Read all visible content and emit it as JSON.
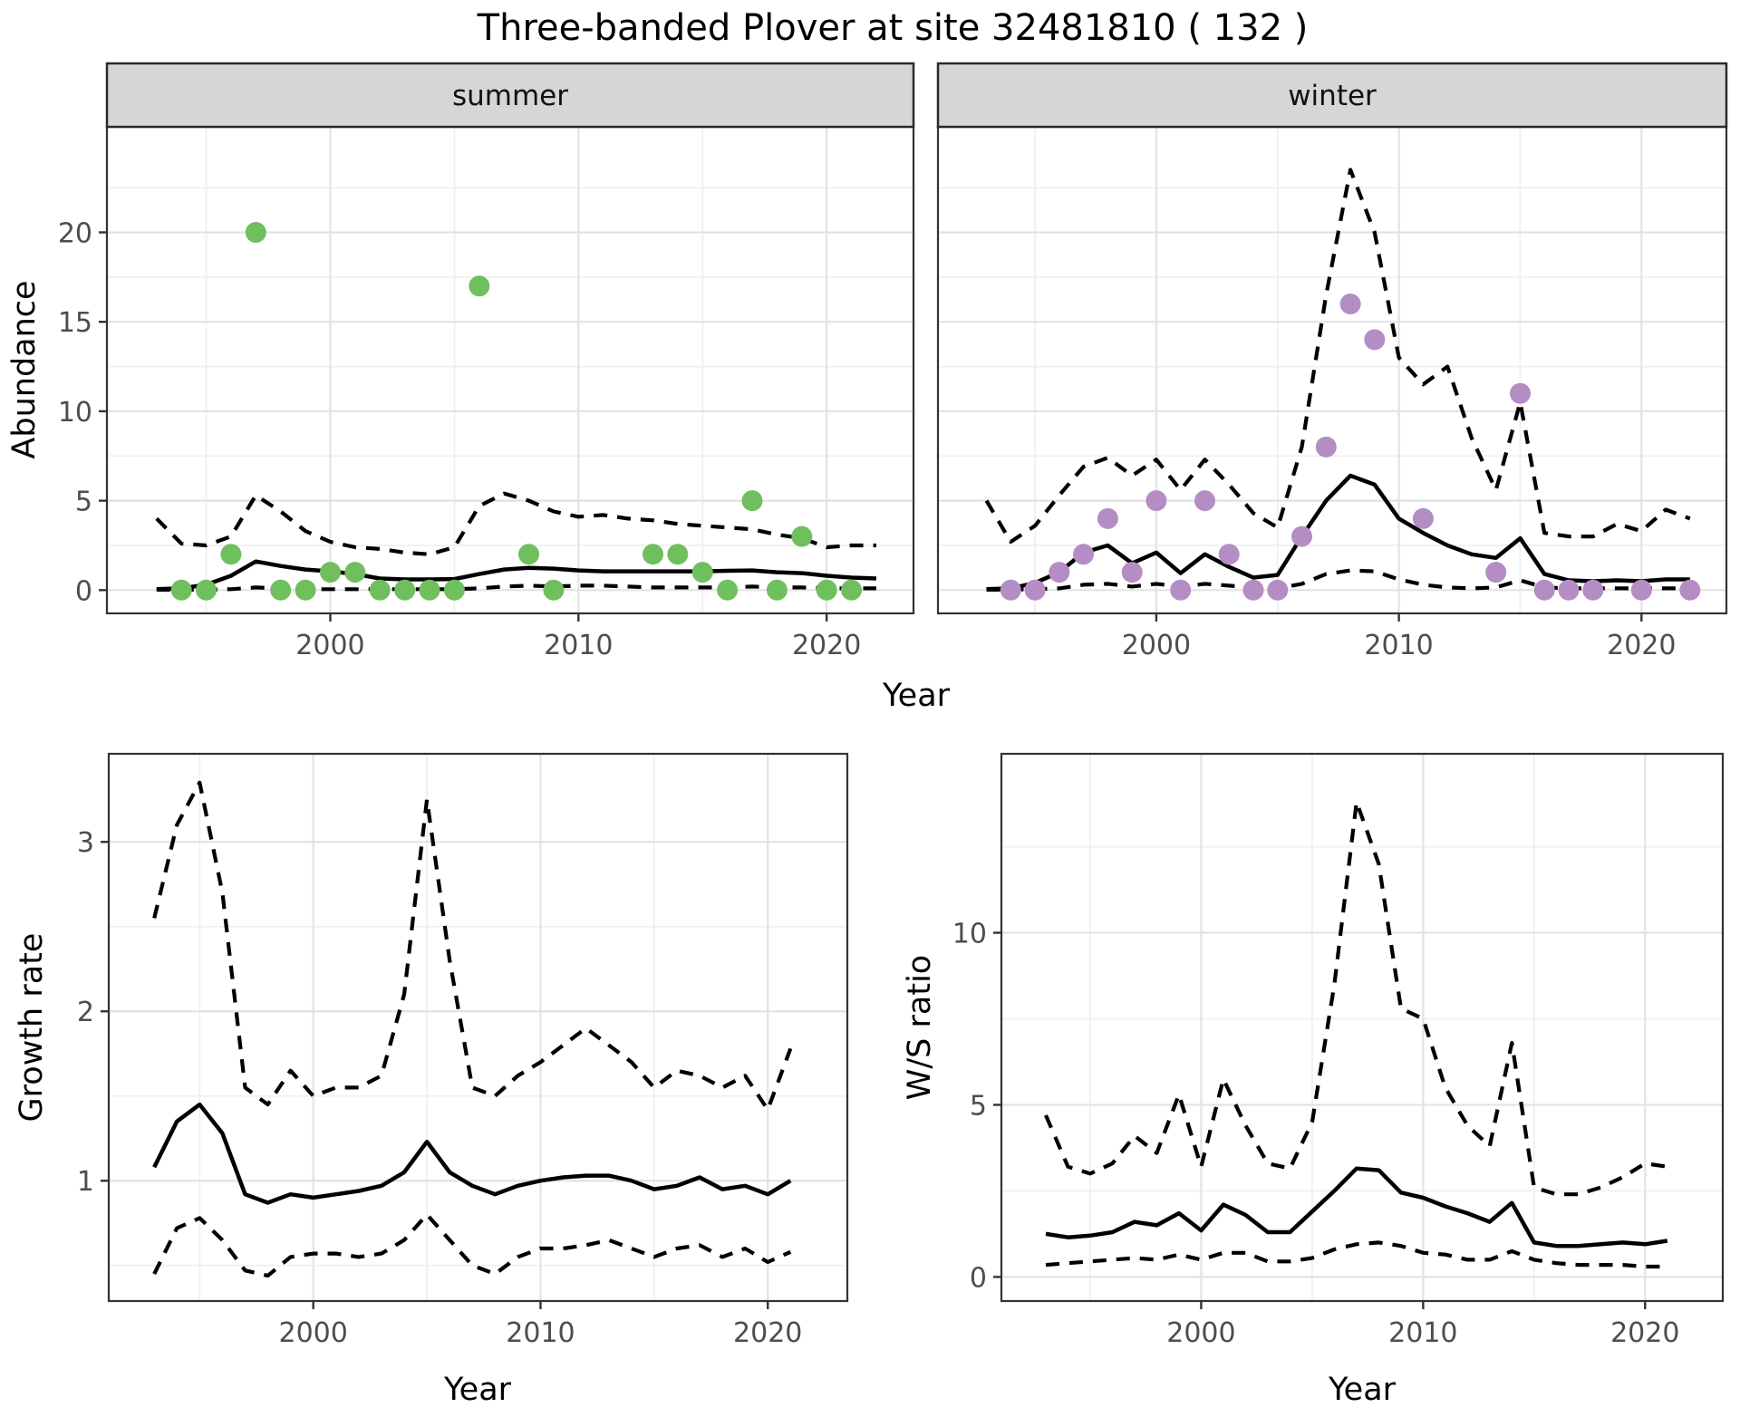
{
  "title": "Three-banded Plover at site 32481810 ( 132 )",
  "axes": {
    "abundance_label": "Abundance",
    "year_label_top": "Year"
  },
  "colors": {
    "summer_point": "#6fbf5e",
    "winter_point": "#b38dc4",
    "line": "#000000",
    "grid_major": "#e3e3e3",
    "grid_minor": "#f0f0f0",
    "panel_border": "#333333",
    "strip_background": "#d6d6d6",
    "tick_label": "#4d4d4d"
  },
  "chart_data": [
    {
      "id": "abundance-summer",
      "type": "line",
      "facet_label": "summer",
      "xlabel": "Year",
      "ylabel": "Abundance",
      "xlim": [
        1991,
        2023.5
      ],
      "ylim": [
        -1.3,
        25.9
      ],
      "xticks": [
        2000,
        2010,
        2020
      ],
      "yticks": [
        0,
        5,
        10,
        15,
        20
      ],
      "minor_x": [
        1995,
        2005,
        2015
      ],
      "minor_y": [
        2.5,
        7.5,
        12.5,
        17.5,
        22.5
      ],
      "x": [
        1993,
        1994,
        1995,
        1996,
        1997,
        1998,
        1999,
        2000,
        2001,
        2002,
        2003,
        2004,
        2005,
        2006,
        2007,
        2008,
        2009,
        2010,
        2011,
        2012,
        2013,
        2014,
        2015,
        2016,
        2017,
        2018,
        2019,
        2020,
        2021,
        2022
      ],
      "series": [
        {
          "name": "median",
          "style": "solid",
          "values": [
            0.05,
            0.1,
            0.3,
            0.8,
            1.6,
            1.35,
            1.15,
            1.05,
            0.9,
            0.65,
            0.6,
            0.6,
            0.62,
            0.9,
            1.15,
            1.25,
            1.2,
            1.1,
            1.05,
            1.05,
            1.05,
            1.05,
            1.05,
            1.08,
            1.1,
            1.0,
            0.95,
            0.8,
            0.7,
            0.65
          ]
        },
        {
          "name": "upper_ci",
          "style": "dashed",
          "values": [
            4.0,
            2.6,
            2.5,
            3.0,
            5.3,
            4.4,
            3.3,
            2.7,
            2.4,
            2.3,
            2.1,
            2.0,
            2.4,
            4.7,
            5.4,
            5.0,
            4.4,
            4.1,
            4.2,
            4.0,
            3.9,
            3.7,
            3.6,
            3.5,
            3.4,
            3.1,
            2.9,
            2.4,
            2.5,
            2.5
          ]
        },
        {
          "name": "lower_ci",
          "style": "dashed",
          "values": [
            0.02,
            0.02,
            0.02,
            0.05,
            0.15,
            0.1,
            0.05,
            0.05,
            0.05,
            0.05,
            0.05,
            0.05,
            0.05,
            0.1,
            0.2,
            0.25,
            0.2,
            0.25,
            0.25,
            0.2,
            0.15,
            0.15,
            0.15,
            0.15,
            0.2,
            0.15,
            0.15,
            0.1,
            0.1,
            0.1
          ]
        }
      ],
      "points": {
        "color": "#6fbf5e",
        "data": [
          [
            1994,
            0
          ],
          [
            1995,
            0
          ],
          [
            1996,
            2
          ],
          [
            1997,
            20
          ],
          [
            1998,
            0
          ],
          [
            1999,
            0
          ],
          [
            2000,
            1
          ],
          [
            2001,
            1
          ],
          [
            2002,
            0
          ],
          [
            2003,
            0
          ],
          [
            2004,
            0
          ],
          [
            2005,
            0
          ],
          [
            2006,
            17
          ],
          [
            2008,
            2
          ],
          [
            2009,
            0
          ],
          [
            2013,
            2
          ],
          [
            2014,
            2
          ],
          [
            2015,
            1
          ],
          [
            2016,
            0
          ],
          [
            2017,
            5
          ],
          [
            2018,
            0
          ],
          [
            2019,
            3
          ],
          [
            2020,
            0
          ],
          [
            2021,
            0
          ]
        ]
      }
    },
    {
      "id": "abundance-winter",
      "type": "line",
      "facet_label": "winter",
      "xlabel": "Year",
      "ylabel": "Abundance",
      "xlim": [
        1991,
        2023.5
      ],
      "ylim": [
        -1.3,
        25.9
      ],
      "xticks": [
        2000,
        2010,
        2020
      ],
      "yticks": [
        0,
        5,
        10,
        15,
        20
      ],
      "minor_x": [
        1995,
        2005,
        2015
      ],
      "minor_y": [
        2.5,
        7.5,
        12.5,
        17.5,
        22.5
      ],
      "x": [
        1993,
        1994,
        1995,
        1996,
        1997,
        1998,
        1999,
        2000,
        2001,
        2002,
        2003,
        2004,
        2005,
        2006,
        2007,
        2008,
        2009,
        2010,
        2011,
        2012,
        2013,
        2014,
        2015,
        2016,
        2017,
        2018,
        2019,
        2020,
        2021,
        2022
      ],
      "series": [
        {
          "name": "median",
          "style": "solid",
          "values": [
            0.05,
            0.1,
            0.4,
            1.0,
            2.1,
            2.5,
            1.5,
            2.1,
            0.95,
            2.0,
            1.3,
            0.7,
            0.85,
            3.0,
            5.0,
            6.4,
            5.9,
            4.0,
            3.2,
            2.5,
            2.0,
            1.8,
            2.9,
            0.9,
            0.55,
            0.5,
            0.55,
            0.5,
            0.6,
            0.6
          ]
        },
        {
          "name": "upper_ci",
          "style": "dashed",
          "values": [
            5.0,
            2.7,
            3.6,
            5.3,
            6.9,
            7.4,
            6.4,
            7.3,
            5.6,
            7.3,
            5.9,
            4.3,
            3.5,
            8.0,
            16.5,
            23.5,
            20.0,
            13.0,
            11.5,
            12.5,
            8.5,
            5.6,
            10.5,
            3.2,
            3.0,
            3.0,
            3.7,
            3.3,
            4.5,
            4.0
          ]
        },
        {
          "name": "lower_ci",
          "style": "dashed",
          "values": [
            0.02,
            0.02,
            0.05,
            0.1,
            0.3,
            0.35,
            0.2,
            0.35,
            0.2,
            0.35,
            0.25,
            0.15,
            0.1,
            0.35,
            0.9,
            1.1,
            1.05,
            0.6,
            0.3,
            0.15,
            0.1,
            0.15,
            0.55,
            0.15,
            0.1,
            0.1,
            0.1,
            0.1,
            0.1,
            0.1
          ]
        }
      ],
      "points": {
        "color": "#b38dc4",
        "data": [
          [
            1994,
            0
          ],
          [
            1995,
            0
          ],
          [
            1996,
            1
          ],
          [
            1997,
            2
          ],
          [
            1998,
            4
          ],
          [
            1999,
            1
          ],
          [
            2000,
            5
          ],
          [
            2001,
            0
          ],
          [
            2002,
            5
          ],
          [
            2003,
            2
          ],
          [
            2004,
            0
          ],
          [
            2005,
            0
          ],
          [
            2006,
            3
          ],
          [
            2007,
            8
          ],
          [
            2008,
            16
          ],
          [
            2009,
            14
          ],
          [
            2011,
            4
          ],
          [
            2014,
            1
          ],
          [
            2015,
            11
          ],
          [
            2016,
            0
          ],
          [
            2017,
            0
          ],
          [
            2018,
            0
          ],
          [
            2020,
            0
          ],
          [
            2022,
            0
          ]
        ]
      }
    },
    {
      "id": "growth-rate",
      "type": "line",
      "facet_label": null,
      "xlabel": "Year",
      "ylabel": "Growth rate",
      "xlim": [
        1991,
        2023.5
      ],
      "ylim": [
        0.29,
        3.52
      ],
      "xticks": [
        2000,
        2010,
        2020
      ],
      "yticks": [
        1,
        2,
        3
      ],
      "minor_x": [
        1995,
        2005,
        2015
      ],
      "minor_y": [
        0.5,
        1.5,
        2.5
      ],
      "x": [
        1993,
        1994,
        1995,
        1996,
        1997,
        1998,
        1999,
        2000,
        2001,
        2002,
        2003,
        2004,
        2005,
        2006,
        2007,
        2008,
        2009,
        2010,
        2011,
        2012,
        2013,
        2014,
        2015,
        2016,
        2017,
        2018,
        2019,
        2020,
        2021
      ],
      "series": [
        {
          "name": "median",
          "style": "solid",
          "values": [
            1.08,
            1.35,
            1.45,
            1.28,
            0.92,
            0.87,
            0.92,
            0.9,
            0.92,
            0.94,
            0.97,
            1.05,
            1.23,
            1.05,
            0.97,
            0.92,
            0.97,
            1.0,
            1.02,
            1.03,
            1.03,
            1.0,
            0.95,
            0.97,
            1.02,
            0.95,
            0.97,
            0.92,
            1.0
          ]
        },
        {
          "name": "upper_ci",
          "style": "dashed",
          "values": [
            2.55,
            3.1,
            3.35,
            2.7,
            1.55,
            1.45,
            1.65,
            1.5,
            1.55,
            1.55,
            1.62,
            2.1,
            3.25,
            2.3,
            1.55,
            1.5,
            1.62,
            1.7,
            1.8,
            1.9,
            1.8,
            1.7,
            1.55,
            1.65,
            1.62,
            1.55,
            1.62,
            1.42,
            1.78
          ]
        },
        {
          "name": "lower_ci",
          "style": "dashed",
          "values": [
            0.45,
            0.72,
            0.78,
            0.65,
            0.47,
            0.44,
            0.55,
            0.57,
            0.57,
            0.55,
            0.57,
            0.65,
            0.8,
            0.65,
            0.5,
            0.45,
            0.55,
            0.6,
            0.6,
            0.62,
            0.65,
            0.6,
            0.55,
            0.6,
            0.62,
            0.55,
            0.6,
            0.52,
            0.58
          ]
        }
      ],
      "points": {
        "color": null,
        "data": []
      }
    },
    {
      "id": "ws-ratio",
      "type": "line",
      "facet_label": null,
      "xlabel": "Year",
      "ylabel": "W/S ratio",
      "xlim": [
        1991,
        2023.5
      ],
      "ylim": [
        -0.7,
        15.2
      ],
      "xticks": [
        2000,
        2010,
        2020
      ],
      "yticks": [
        0,
        5,
        10
      ],
      "minor_x": [
        1995,
        2005,
        2015
      ],
      "minor_y": [
        2.5,
        7.5,
        12.5
      ],
      "x": [
        1993,
        1994,
        1995,
        1996,
        1997,
        1998,
        1999,
        2000,
        2001,
        2002,
        2003,
        2004,
        2005,
        2006,
        2007,
        2008,
        2009,
        2010,
        2011,
        2012,
        2013,
        2014,
        2015,
        2016,
        2017,
        2018,
        2019,
        2020,
        2021
      ],
      "series": [
        {
          "name": "median",
          "style": "solid",
          "values": [
            1.25,
            1.15,
            1.2,
            1.3,
            1.6,
            1.5,
            1.85,
            1.35,
            2.1,
            1.8,
            1.3,
            1.3,
            1.9,
            2.5,
            3.15,
            3.1,
            2.45,
            2.3,
            2.05,
            1.85,
            1.6,
            2.15,
            1.0,
            0.9,
            0.9,
            0.95,
            1.0,
            0.95,
            1.05
          ]
        },
        {
          "name": "upper_ci",
          "style": "dashed",
          "values": [
            4.7,
            3.2,
            3.0,
            3.3,
            4.1,
            3.6,
            5.3,
            3.2,
            5.75,
            4.4,
            3.3,
            3.15,
            4.5,
            8.5,
            13.8,
            12.0,
            7.8,
            7.5,
            5.5,
            4.4,
            3.8,
            6.8,
            2.6,
            2.4,
            2.4,
            2.6,
            2.9,
            3.3,
            3.2
          ]
        },
        {
          "name": "lower_ci",
          "style": "dashed",
          "values": [
            0.35,
            0.4,
            0.45,
            0.5,
            0.55,
            0.5,
            0.65,
            0.5,
            0.7,
            0.7,
            0.45,
            0.45,
            0.55,
            0.8,
            0.95,
            1.0,
            0.9,
            0.7,
            0.65,
            0.5,
            0.5,
            0.75,
            0.5,
            0.4,
            0.35,
            0.35,
            0.35,
            0.3,
            0.3
          ]
        }
      ],
      "points": {
        "color": null,
        "data": []
      }
    }
  ]
}
